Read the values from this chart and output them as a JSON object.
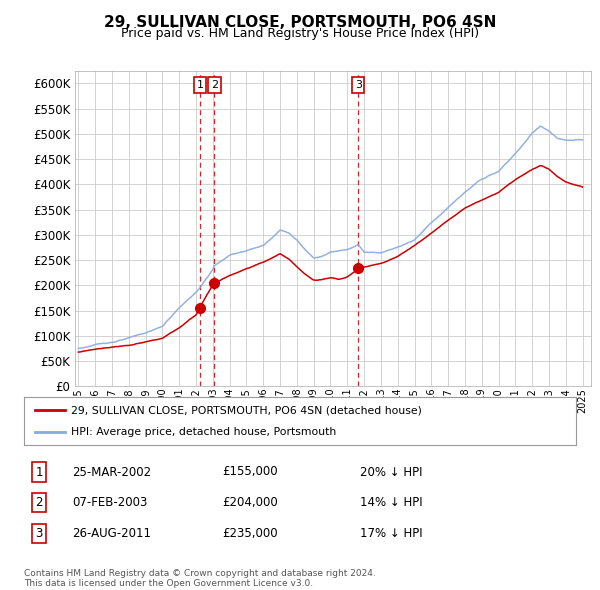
{
  "title": "29, SULLIVAN CLOSE, PORTSMOUTH, PO6 4SN",
  "subtitle": "Price paid vs. HM Land Registry's House Price Index (HPI)",
  "ytick_values": [
    0,
    50000,
    100000,
    150000,
    200000,
    250000,
    300000,
    350000,
    400000,
    450000,
    500000,
    550000,
    600000
  ],
  "ylim": [
    0,
    625000
  ],
  "xlim_start": 1994.8,
  "xlim_end": 2025.5,
  "legend_label_red": "29, SULLIVAN CLOSE, PORTSMOUTH, PO6 4SN (detached house)",
  "legend_label_blue": "HPI: Average price, detached house, Portsmouth",
  "sale_dates": [
    2002.23,
    2003.09,
    2011.65
  ],
  "sale_prices": [
    155000,
    204000,
    235000
  ],
  "sale_labels": [
    "1",
    "2",
    "3"
  ],
  "sale_info": [
    {
      "num": "1",
      "date": "25-MAR-2002",
      "price": "£155,000",
      "pct": "20% ↓ HPI"
    },
    {
      "num": "2",
      "date": "07-FEB-2003",
      "price": "£204,000",
      "pct": "14% ↓ HPI"
    },
    {
      "num": "3",
      "date": "26-AUG-2011",
      "price": "£235,000",
      "pct": "17% ↓ HPI"
    }
  ],
  "red_color": "#cc0000",
  "blue_color": "#88aadd",
  "vline_color": "#cc0000",
  "grid_color": "#cccccc",
  "bg_color": "#ffffff",
  "footnote": "Contains HM Land Registry data © Crown copyright and database right 2024.\nThis data is licensed under the Open Government Licence v3.0."
}
